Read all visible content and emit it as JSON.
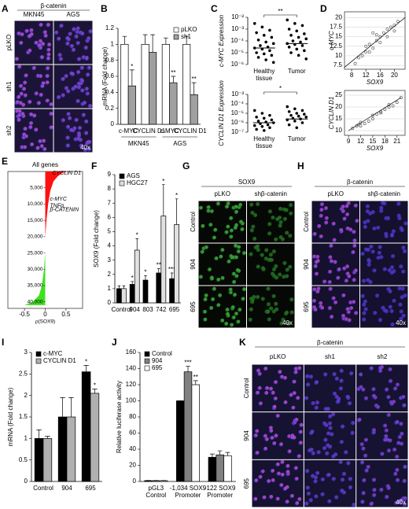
{
  "images": [
    {
      "panel": "A",
      "title": "β-catenin",
      "columns": [
        "MKN45",
        "AGS"
      ],
      "rows": [
        "pLKO",
        "sh1",
        "sh2"
      ],
      "magnification": "40x",
      "background": "#1c1438",
      "nucleus_color": "#3a36c8",
      "stain_color": "#c050c8",
      "column_intensity": [
        1,
        0.6
      ]
    },
    {
      "panel": "G",
      "title": "SOX9",
      "columns": [
        "pLKO",
        "shβ-catenin"
      ],
      "rows": [
        "Control",
        "904",
        "695"
      ],
      "magnification": "40x",
      "background": "#050805",
      "nucleus_color": "#1c5a1c",
      "stain_color": "#40b040",
      "column_intensity": [
        1,
        0.3
      ]
    },
    {
      "panel": "H",
      "title": "β-catenin",
      "columns": [
        "pLKO",
        "shβ-catenin"
      ],
      "rows": [
        "Control",
        "904",
        "695"
      ],
      "magnification": "40x",
      "background": "#14102e",
      "nucleus_color": "#3430c0",
      "stain_color": "#c04ab8",
      "column_intensity": [
        1,
        0.25
      ]
    },
    {
      "panel": "K",
      "title": "β-catenin",
      "columns": [
        "pLKO",
        "sh1",
        "sh2"
      ],
      "rows": [
        "Control",
        "904",
        "695"
      ],
      "magnification": "40x",
      "background": "#161232",
      "nucleus_color": "#3634c4",
      "stain_color": "#c84cc0",
      "column_intensity": [
        1,
        0.35,
        0.6
      ]
    }
  ],
  "chart_data": [
    {
      "panel": "B",
      "type": "bar",
      "ylabel": "mRNA (Fold change)",
      "categories": [
        "c-MYC",
        "CYCLIN D1",
        "c-MYC",
        "CYCLIN D1"
      ],
      "group_labels": [
        "MKN45",
        "AGS"
      ],
      "ylim": [
        0,
        1.2
      ],
      "yticks": [
        0,
        0.2,
        0.4,
        0.6,
        0.8,
        1,
        1.2
      ],
      "legend": "top-right",
      "series": [
        {
          "name": "pLKO",
          "color": "#ffffff",
          "values": [
            1,
            1,
            1,
            1
          ],
          "errors": [
            0.1,
            0.12,
            0.08,
            0.1
          ],
          "significance": [
            null,
            null,
            null,
            null
          ]
        },
        {
          "name": "sh1",
          "color": "#a0a0a0",
          "values": [
            0.48,
            0.9,
            0.52,
            0.37
          ],
          "errors": [
            0.2,
            0.22,
            0.08,
            0.15
          ],
          "significance": [
            "*",
            null,
            "**",
            "**"
          ]
        }
      ]
    },
    {
      "panel": "C",
      "type": "strip",
      "ylabel": "c-MYC Expression",
      "log": true,
      "ylim": [
        1e-06,
        0.01
      ],
      "yticks": [
        {
          "value": 1e-06,
          "label": "10⁻⁶"
        },
        {
          "value": 1e-05,
          "label": "10⁻⁵"
        },
        {
          "value": 0.0001,
          "label": "10⁻⁴"
        },
        {
          "value": 0.001,
          "label": "10⁻³"
        },
        {
          "value": 0.01,
          "label": "10⁻²"
        }
      ],
      "categories": [
        [
          "Healthy",
          "tissue"
        ],
        [
          "Tumor"
        ]
      ],
      "significance": "**",
      "medians": [
        2.5e-05,
        6e-05
      ],
      "points": [
        [
          0.003,
          0.0015,
          0.0008,
          0.0005,
          0.0003,
          0.0002,
          0.00012,
          8e-05,
          6e-05,
          4e-05,
          3e-05,
          2.5e-05,
          2e-05,
          1.5e-05,
          1e-05,
          8e-06,
          6e-06,
          4e-06,
          2.5e-06,
          1.5e-06
        ],
        [
          0.006,
          0.003,
          0.002,
          0.001,
          0.0007,
          0.0004,
          0.0003,
          0.0002,
          0.00015,
          0.0001,
          8e-05,
          6e-05,
          5e-05,
          4e-05,
          3e-05,
          2e-05,
          1.5e-05,
          1e-05,
          6e-06,
          3e-06
        ]
      ]
    },
    {
      "type": "strip",
      "ylabel": "CYCLIN D1 Expression",
      "log": true,
      "ylim": [
        1e-07,
        0.001
      ],
      "yticks": [
        {
          "value": 1e-07,
          "label": "10⁻⁷"
        },
        {
          "value": 1e-06,
          "label": "10⁻⁶"
        },
        {
          "value": 1e-05,
          "label": "10⁻⁵"
        },
        {
          "value": 0.0001,
          "label": "10⁻⁴"
        },
        {
          "value": 0.001,
          "label": "10⁻³"
        }
      ],
      "categories": [
        [
          "Healthy",
          "tissue"
        ],
        [
          "Tumor"
        ]
      ],
      "significance": "*",
      "medians": [
        1e-06,
        2.5e-06
      ],
      "points": [
        [
          2e-05,
          1e-05,
          6e-06,
          4e-06,
          3e-06,
          2e-06,
          1.5e-06,
          1.2e-06,
          1e-06,
          8e-07,
          6e-07,
          5e-07,
          4e-07,
          3e-07,
          2e-07,
          1.5e-07
        ],
        [
          5e-05,
          3e-05,
          2e-05,
          1.5e-05,
          1e-05,
          8e-06,
          6e-06,
          5e-06,
          4e-06,
          3e-06,
          2.5e-06,
          2e-06,
          1.5e-06,
          1e-06,
          6e-07,
          3e-07
        ]
      ]
    },
    {
      "panel": "D",
      "type": "scatter",
      "ylabel": "c-MYC",
      "xlim": [
        6,
        23
      ],
      "ylim": [
        6.5,
        21.5
      ],
      "xticks": [
        8,
        12,
        16,
        20
      ],
      "yticks": [
        7.5,
        10,
        12.5,
        15,
        17.5,
        20
      ],
      "x": [
        9,
        10,
        11,
        12,
        12,
        13,
        13,
        14,
        15,
        15,
        16,
        16,
        17,
        18,
        18,
        19,
        20,
        20,
        21,
        14
      ],
      "y": [
        8,
        9.5,
        10,
        11,
        12.5,
        11,
        13,
        12,
        14,
        15.5,
        13.5,
        15,
        16,
        15,
        17,
        17.5,
        16.5,
        18,
        19,
        16
      ],
      "trend": [
        [
          6,
          7
        ],
        [
          23,
          20
        ]
      ],
      "xlabel": "SOX9"
    },
    {
      "type": "scatter",
      "ylabel": "CYCLIN D1",
      "xlabel": "SOX9",
      "xlim": [
        8,
        23
      ],
      "ylim": [
        8,
        27
      ],
      "xticks": [
        9,
        12,
        15,
        18,
        21
      ],
      "yticks": [
        10,
        15,
        20,
        25
      ],
      "x": [
        10,
        11,
        11.5,
        12,
        12,
        13,
        14,
        15,
        15,
        16,
        17,
        17,
        18,
        19,
        19,
        20,
        21,
        22
      ],
      "y": [
        11,
        12,
        12.5,
        12,
        13.5,
        13,
        14,
        15,
        16.5,
        17,
        17.5,
        18,
        19,
        20,
        21,
        20.5,
        22,
        24
      ],
      "trend": [
        [
          9,
          10
        ],
        [
          22,
          24
        ]
      ]
    },
    {
      "panel": "E",
      "type": "waterfall",
      "title": "All genes",
      "xlabel": "ρ(SOX9)",
      "xlim": [
        -0.9,
        0.9
      ],
      "xticks": [
        -0.5,
        0,
        0.5
      ],
      "ylim": [
        0,
        42000
      ],
      "yticks": [
        {
          "value": 5000,
          "label": "5,000"
        },
        {
          "value": 10000,
          "label": "10,000"
        },
        {
          "value": 15000,
          "label": "15,000"
        },
        {
          "value": 20000,
          "label": "20,000"
        },
        {
          "value": 25000,
          "label": "25,000"
        },
        {
          "value": 30000,
          "label": "30,000"
        },
        {
          "value": 35000,
          "label": "35,000"
        },
        {
          "value": 40000,
          "label": "40,000"
        }
      ],
      "series": [
        {
          "color": "#ff1010",
          "ranks": [
            0,
            500,
            1500,
            3000,
            6000,
            10000,
            15000,
            20000
          ],
          "values": [
            0.55,
            0.4,
            0.3,
            0.2,
            0.12,
            0.07,
            0.03,
            0
          ]
        },
        {
          "color": "#40e020",
          "ranks": [
            25000,
            30000,
            35000,
            38000,
            40000,
            41000
          ],
          "values": [
            0,
            -0.03,
            -0.08,
            -0.15,
            -0.3,
            -0.5
          ]
        }
      ],
      "genes": [
        {
          "text": "CYCLIN D1",
          "rank": 500
        },
        {
          "text": "c-MYC",
          "rank": 8500
        },
        {
          "text": "TNFα",
          "rank": 10500
        },
        {
          "text": "β-CATENIN",
          "rank": 11800
        }
      ]
    },
    {
      "panel": "F",
      "type": "bar",
      "ylabel": "SOX9 (Fold change)",
      "categories": [
        "Control",
        "904",
        "803",
        "742",
        "695"
      ],
      "ylim": [
        0,
        9
      ],
      "yticks": [
        0,
        1,
        2,
        3,
        4,
        5,
        6,
        7,
        8,
        9
      ],
      "legend": "top-left",
      "series": [
        {
          "name": "AGS",
          "color": "#000000",
          "values": [
            1,
            1.3,
            1.6,
            2.1,
            1.7
          ],
          "errors": [
            0.2,
            0.2,
            0.3,
            0.3,
            0.4
          ],
          "significance": [
            null,
            "*",
            "*",
            "**",
            "***"
          ]
        },
        {
          "name": "HGC27",
          "color": "#e0e0e0",
          "values": [
            1,
            3.7,
            null,
            6.1,
            5.5
          ],
          "errors": [
            0.2,
            0.8,
            null,
            2.2,
            1.8
          ],
          "significance": [
            null,
            "*",
            null,
            "*",
            "*"
          ]
        }
      ]
    },
    {
      "panel": "I",
      "type": "bar",
      "ylabel": "mRNA (Fold change)",
      "categories": [
        "Control",
        "904",
        "695"
      ],
      "ylim": [
        0,
        3
      ],
      "yticks": [
        0,
        0.5,
        1,
        1.5,
        2,
        2.5,
        3
      ],
      "legend": "top-left",
      "series": [
        {
          "name": "c-MYC",
          "color": "#000000",
          "values": [
            1,
            1.5,
            2.55
          ],
          "errors": [
            0.2,
            0.45,
            0.15
          ],
          "significance": [
            null,
            null,
            "*"
          ]
        },
        {
          "name": "CYCLIN D1",
          "color": "#b0b0b0",
          "values": [
            1,
            1.5,
            2.05
          ],
          "errors": [
            0.05,
            0.45,
            0.1
          ],
          "significance": [
            null,
            null,
            "*"
          ]
        }
      ]
    },
    {
      "panel": "J",
      "type": "bar",
      "ylabel": "Relative luciferase activity",
      "categories": [
        [
          "pGL3",
          "Control"
        ],
        [
          "-1,034 SOX9",
          "Promoter"
        ],
        [
          "-122 SOX9",
          "Promoter"
        ]
      ],
      "ylim": [
        0,
        160
      ],
      "yticks": [
        0,
        20,
        40,
        60,
        80,
        100,
        120,
        140,
        160
      ],
      "legend": "top-left",
      "series": [
        {
          "name": "Control",
          "color": "#000000",
          "values": [
            1,
            100,
            30
          ],
          "errors": [
            0.3,
            0,
            4
          ],
          "significance": [
            null,
            null,
            null
          ]
        },
        {
          "name": "904",
          "color": "#808080",
          "values": [
            1,
            136,
            33
          ],
          "errors": [
            0.3,
            7,
            5
          ],
          "significance": [
            null,
            "***",
            null
          ]
        },
        {
          "name": "695",
          "color": "#ffffff",
          "values": [
            1,
            120,
            32
          ],
          "errors": [
            0.3,
            5,
            4
          ],
          "significance": [
            null,
            "**",
            null
          ]
        }
      ]
    }
  ]
}
